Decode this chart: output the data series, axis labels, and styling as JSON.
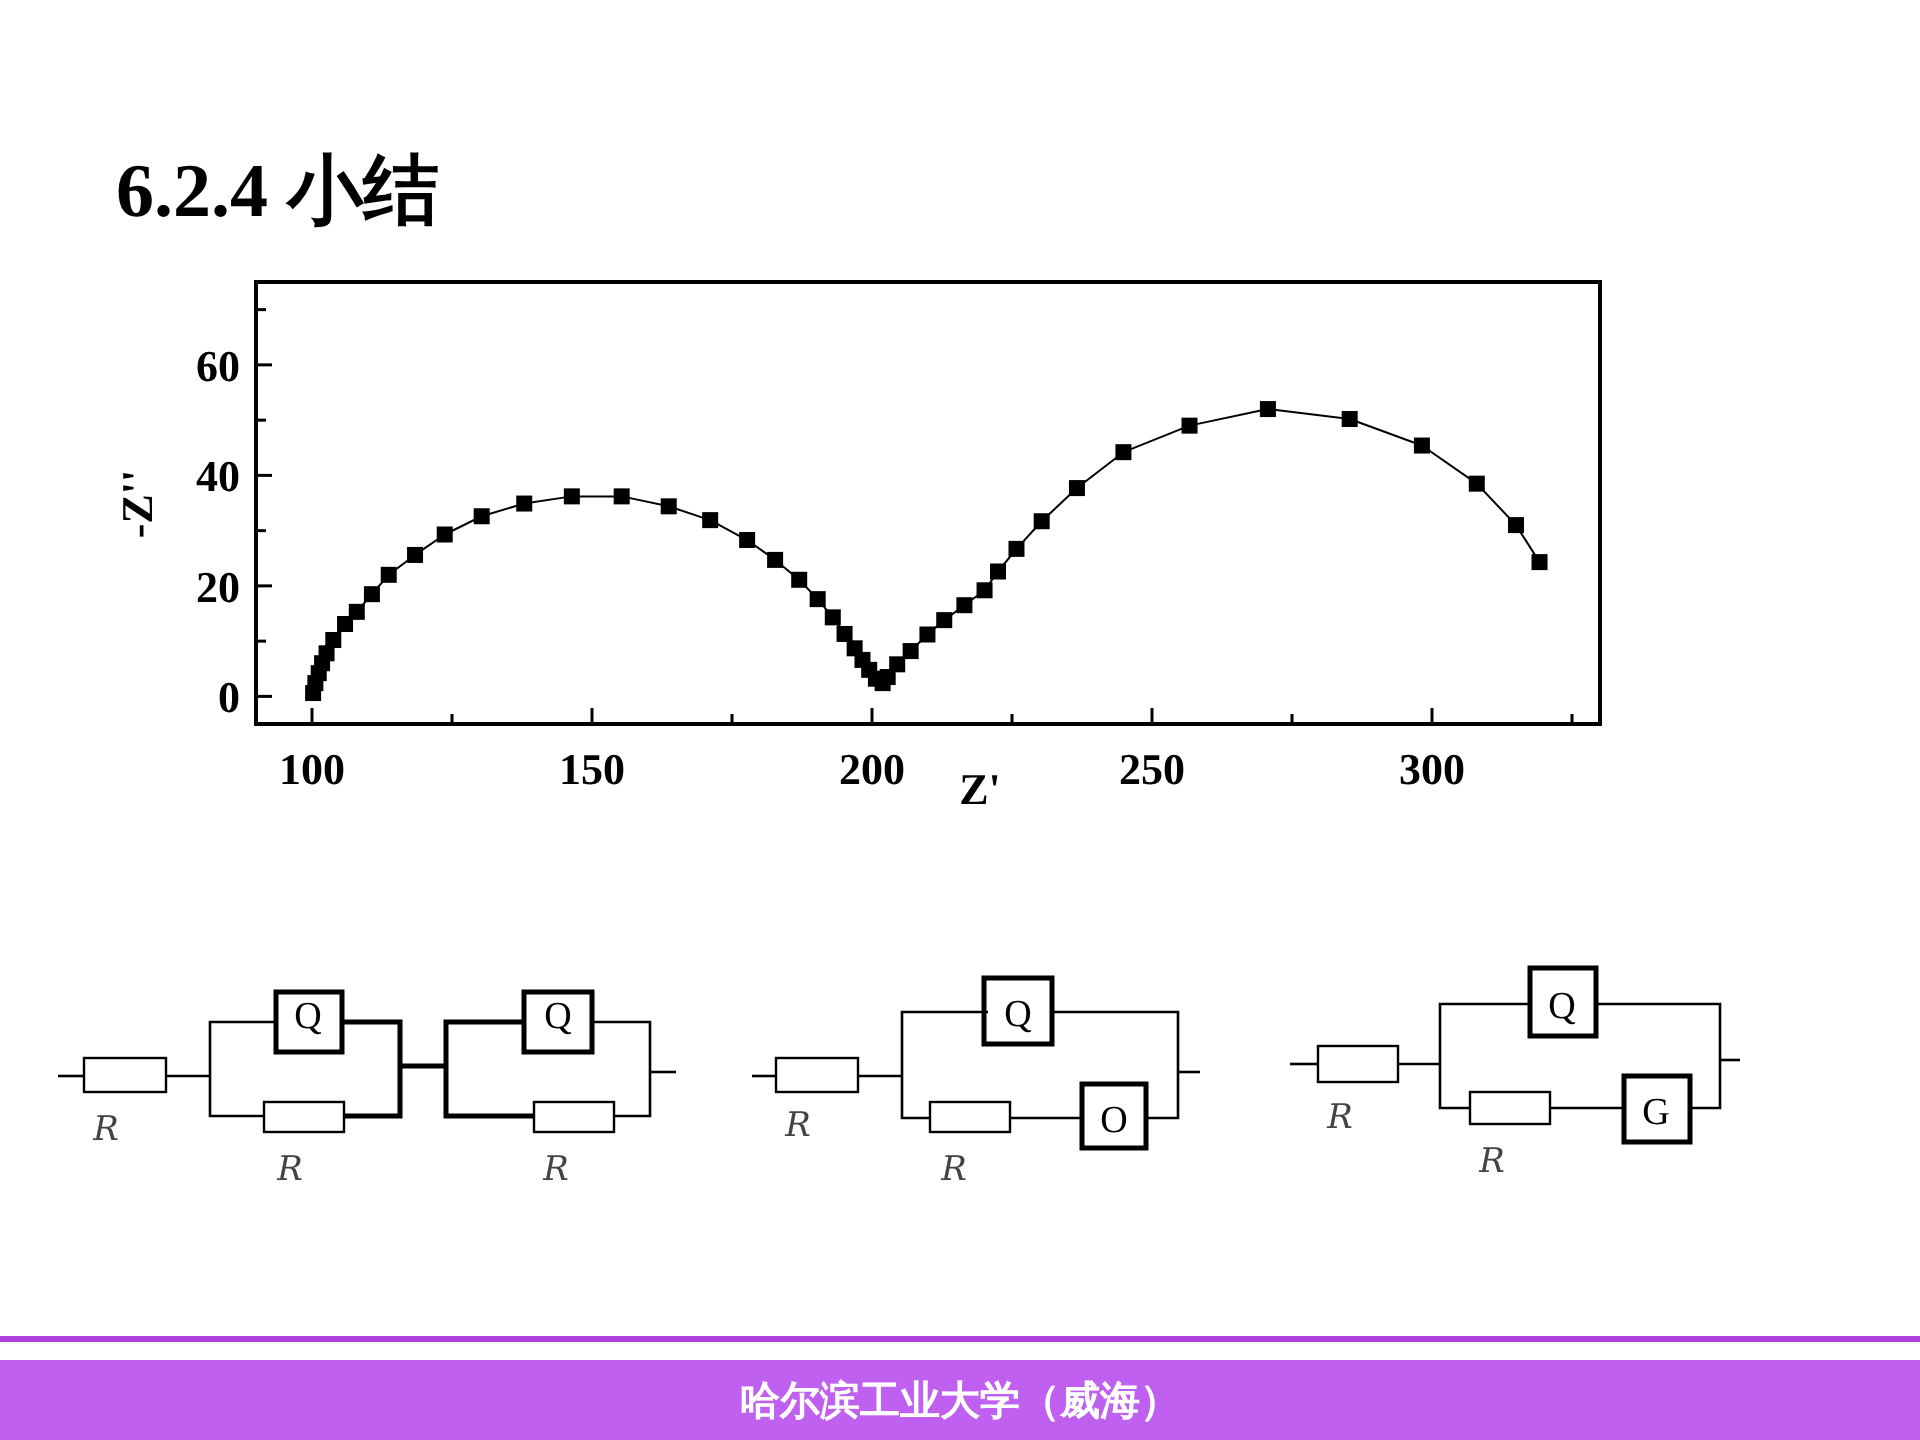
{
  "chart_data": {
    "type": "line",
    "title": "6.2.4 小结",
    "xlabel": "Z'",
    "ylabel": "-Z''",
    "marker": "square",
    "line_style": "solid",
    "color": "#000000",
    "x": [
      100.2,
      100.6,
      101.2,
      101.8,
      102.6,
      103.8,
      105.9,
      108,
      110.7,
      113.7,
      118.4,
      123.7,
      130.3,
      137.9,
      146.4,
      155.3,
      163.7,
      171.1,
      177.7,
      182.7,
      187,
      190.3,
      193,
      195.1,
      196.9,
      198.3,
      199.5,
      200.7,
      201.9,
      202.8,
      204.5,
      206.9,
      209.9,
      212.9,
      216.5,
      220.1,
      222.5,
      225.8,
      230.3,
      236.6,
      244.9,
      256.7,
      270.7,
      285.3,
      298.2,
      308,
      315,
      319.2
    ],
    "values": [
      0.6,
      2.4,
      4.2,
      6,
      7.8,
      10.2,
      13.1,
      15.3,
      18.5,
      22,
      25.6,
      29.3,
      32.6,
      34.9,
      36.2,
      36.2,
      34.4,
      31.9,
      28.3,
      24.7,
      21.1,
      17.6,
      14.3,
      11.3,
      8.7,
      6.6,
      4.8,
      3.2,
      2.4,
      3.5,
      5.8,
      8.2,
      11.2,
      13.8,
      16.5,
      19.2,
      22.6,
      26.7,
      31.7,
      37.7,
      44.2,
      49,
      52,
      50.2,
      45.4,
      38.5,
      31,
      24.3
    ],
    "xlim": [
      90,
      330
    ],
    "ylim": [
      -5,
      75
    ],
    "xticks": [
      100,
      {
        "value": 125,
        "label": null
      },
      150,
      {
        "value": 175,
        "label": null
      },
      200,
      {
        "value": 225,
        "label": null
      },
      250,
      {
        "value": 275,
        "label": null
      },
      300,
      {
        "value": 325,
        "label": null
      }
    ],
    "yticks": [
      0,
      {
        "value": 10,
        "label": null
      },
      20,
      {
        "value": 30,
        "label": null
      },
      40,
      {
        "value": 50,
        "label": null
      },
      60,
      {
        "value": 70,
        "label": null
      }
    ],
    "annotations": [
      "哈尔滨工业大学（威海）",
      "R",
      "Q",
      "R",
      "Q",
      "R",
      "R",
      "Q",
      "R",
      "O",
      "R",
      "Q",
      "R",
      "G"
    ]
  }
}
